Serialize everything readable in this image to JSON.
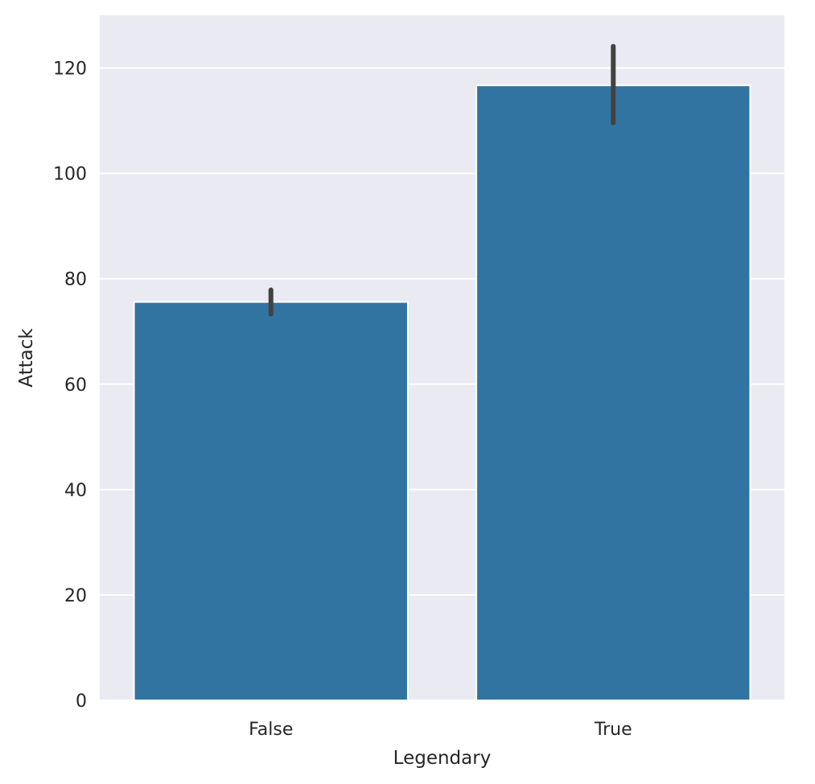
{
  "chart_data": {
    "type": "bar",
    "xlabel": "Legendary",
    "ylabel": "Attack",
    "categories": [
      "False",
      "True"
    ],
    "values": [
      75.6,
      116.7
    ],
    "error_bars": [
      [
        73.3,
        77.9
      ],
      [
        109.6,
        124.1
      ]
    ],
    "ylim": [
      0,
      130
    ],
    "yticks": [
      0,
      20,
      40,
      60,
      80,
      100,
      120
    ],
    "grid": true,
    "colors": {
      "bar": "#3274a1",
      "errorbar": "#424242",
      "plot_background": "#eaeaf2",
      "gridline": "#ffffff"
    }
  }
}
